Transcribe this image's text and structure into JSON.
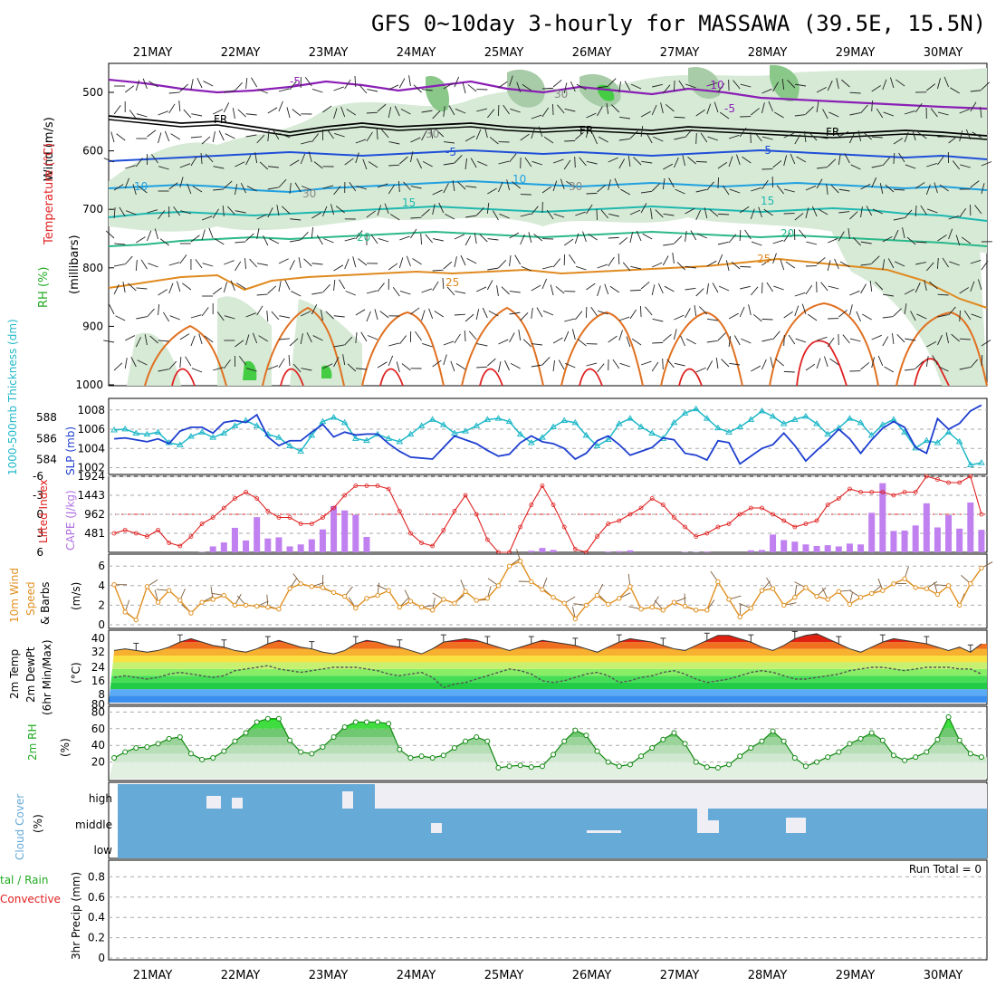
{
  "title": "GFS 0~10day 3-hourly for MASSAWA (39.5E, 15.5N)",
  "dates": [
    "21MAY",
    "22MAY",
    "23MAY",
    "24MAY",
    "25MAY",
    "26MAY",
    "27MAY",
    "28MAY",
    "29MAY",
    "30MAY"
  ],
  "colors": {
    "purple": "#8a1fb5",
    "black": "#000000",
    "blue": "#1f4fd8",
    "lightblue": "#1fa0e0",
    "teal": "#1fb8b0",
    "green_t": "#2ab88a",
    "orange": "#e08a1f",
    "darkorange": "#e07020",
    "red": "#e02020",
    "cape": "#c080f0",
    "rh_green": "#22cc22",
    "cloud": "#66aad8",
    "slp": "#1f3fd0",
    "thick": "#20b8c8",
    "wind10": "#e09020"
  },
  "panels": {
    "upper": {
      "ylabel_wind": "Wind (m/s)",
      "ylabel_temp": "Temperature (°C)",
      "ylabel_rh": "RH (%)",
      "ylabel_mb": "(millibars)",
      "ticks": [
        "500",
        "600",
        "700",
        "800",
        "900",
        "1000"
      ],
      "contour_labels": [
        {
          "text": "-5",
          "color": "purple"
        },
        {
          "text": "-10",
          "color": "purple"
        },
        {
          "text": "-5",
          "color": "purple"
        },
        {
          "text": "FR",
          "color": "black"
        },
        {
          "text": "FR",
          "color": "black"
        },
        {
          "text": "FR",
          "color": "black"
        },
        {
          "text": "-5",
          "color": "blue"
        },
        {
          "text": "-5",
          "color": "blue"
        },
        {
          "text": "10",
          "color": "lightblue"
        },
        {
          "text": "10",
          "color": "lightblue"
        },
        {
          "text": "15",
          "color": "teal"
        },
        {
          "text": "15",
          "color": "teal"
        },
        {
          "text": "20",
          "color": "green_t"
        },
        {
          "text": "20",
          "color": "green_t"
        },
        {
          "text": "25",
          "color": "orange"
        },
        {
          "text": "25",
          "color": "orange"
        },
        {
          "text": "30",
          "color": "gray"
        },
        {
          "text": "30",
          "color": "gray"
        },
        {
          "text": "30",
          "color": "gray"
        },
        {
          "text": "30",
          "color": "gray"
        }
      ]
    },
    "slp": {
      "ylabel_thick": "1000-500mb Thickness (dm)",
      "ylabel_slp": "SLP (mb)",
      "thick_ticks": [
        "588",
        "586",
        "584"
      ],
      "slp_ticks": [
        "1008",
        "1006",
        "1004",
        "1002"
      ]
    },
    "cape": {
      "ylabel_li": "Lifted Index",
      "ylabel_cape": "CAPE (J/kg)",
      "li_ticks": [
        "-6",
        "-3",
        "0",
        "3",
        "6"
      ],
      "cape_ticks": [
        "1924",
        "1443",
        "962",
        "481"
      ]
    },
    "wind": {
      "ylabel_1": "10m Wind",
      "ylabel_2": "Speed",
      "ylabel_3": "& Barbs",
      "ylabel_4": "(m/s)",
      "ticks": [
        "6",
        "4",
        "2",
        "0"
      ]
    },
    "temp": {
      "ylabel_1": "2m Temp",
      "ylabel_2": "2m DewPt",
      "ylabel_3": "(6hr Min/Max)",
      "ylabel_4": "(°C)",
      "ticks": [
        "40",
        "32",
        "24",
        "16",
        "8",
        "80"
      ]
    },
    "rh": {
      "ylabel_1": "2m RH",
      "ylabel_2": "(%)",
      "ticks": [
        "80",
        "60",
        "40",
        "20"
      ]
    },
    "cloud": {
      "ylabel_1": "Cloud Cover",
      "ylabel_2": "(%)",
      "levels": [
        "high",
        "middle",
        "low"
      ]
    },
    "precip": {
      "ylabel_1": "tal / Rain",
      "ylabel_2": "Convective",
      "ylabel_3": "3hr Precip (mm)",
      "ticks": [
        "0.8",
        "0.6",
        "0.4",
        "0.2",
        "0"
      ],
      "run_total": "Run Total = 0"
    }
  },
  "chart_data": {
    "type": "line",
    "x": [
      "20MAY12",
      "20MAY15",
      "20MAY18",
      "20MAY21",
      "21MAY00",
      "21MAY03",
      "21MAY06",
      "21MAY09",
      "21MAY12",
      "21MAY15",
      "21MAY18",
      "21MAY21",
      "22MAY00",
      "22MAY03",
      "22MAY06",
      "22MAY09",
      "22MAY12",
      "22MAY15",
      "22MAY18",
      "22MAY21",
      "23MAY00",
      "23MAY03",
      "23MAY06",
      "23MAY09",
      "23MAY12",
      "23MAY15",
      "23MAY18",
      "23MAY21",
      "24MAY00",
      "24MAY03",
      "24MAY06",
      "24MAY09",
      "24MAY12",
      "24MAY15",
      "24MAY18",
      "24MAY21",
      "25MAY00",
      "25MAY03",
      "25MAY06",
      "25MAY09",
      "25MAY12",
      "25MAY15",
      "25MAY18",
      "25MAY21",
      "26MAY00",
      "26MAY03",
      "26MAY06",
      "26MAY09",
      "26MAY12",
      "26MAY15",
      "26MAY18",
      "26MAY21",
      "27MAY00",
      "27MAY03",
      "27MAY06",
      "27MAY09",
      "27MAY12",
      "27MAY15",
      "27MAY18",
      "27MAY21",
      "28MAY00",
      "28MAY03",
      "28MAY06",
      "28MAY09",
      "28MAY12",
      "28MAY15",
      "28MAY18",
      "28MAY21",
      "29MAY00",
      "29MAY03",
      "29MAY06",
      "29MAY09",
      "29MAY12",
      "29MAY15",
      "29MAY18",
      "29MAY21",
      "30MAY00",
      "30MAY03",
      "30MAY06",
      "30MAY09"
    ],
    "series": [
      {
        "name": "2m RH",
        "panel": "rh",
        "values": [
          25,
          32,
          37,
          38,
          42,
          48,
          50,
          30,
          23,
          25,
          33,
          45,
          55,
          68,
          72,
          72,
          46,
          32,
          30,
          38,
          50,
          62,
          68,
          68,
          68,
          66,
          35,
          25,
          27,
          25,
          28,
          37,
          45,
          50,
          45,
          13,
          15,
          16,
          14,
          15,
          29,
          45,
          58,
          52,
          33,
          20,
          15,
          17,
          27,
          37,
          47,
          55,
          42,
          20,
          14,
          13,
          17,
          27,
          37,
          45,
          57,
          45,
          25,
          15,
          20,
          26,
          32,
          42,
          48,
          55,
          46,
          28,
          22,
          26,
          32,
          47,
          74,
          46,
          30,
          26
        ]
      },
      {
        "name": "2m Temp",
        "panel": "temp",
        "values": [
          31,
          32,
          31,
          30,
          31,
          33,
          36,
          38,
          36,
          34,
          33,
          31,
          30,
          32,
          35,
          37,
          35,
          33,
          32,
          30,
          29,
          31,
          35,
          37,
          36,
          34,
          33,
          31,
          29,
          32,
          36,
          37,
          38,
          37,
          35,
          33,
          31,
          33,
          35,
          37,
          36,
          35,
          34,
          32,
          30,
          33,
          36,
          38,
          37,
          36,
          34,
          32,
          31,
          34,
          37,
          40,
          40,
          38,
          36,
          33,
          31,
          34,
          38,
          40,
          41,
          38,
          35,
          32,
          30,
          33,
          36,
          38,
          37,
          36,
          35,
          33,
          31,
          33,
          30,
          35
        ]
      },
      {
        "name": "2m DewPt",
        "panel": "temp",
        "values": [
          15,
          16,
          15,
          14,
          15,
          17,
          18,
          17,
          16,
          15,
          16,
          19,
          20,
          21,
          22,
          20,
          19,
          18,
          19,
          20,
          21,
          21,
          21,
          20,
          19,
          17,
          16,
          17,
          18,
          15,
          9,
          11,
          12,
          14,
          16,
          18,
          20,
          19,
          17,
          13,
          12,
          13,
          15,
          17,
          18,
          16,
          12,
          13,
          15,
          16,
          18,
          19,
          17,
          14,
          12,
          13,
          14,
          16,
          18,
          19,
          18,
          16,
          14,
          14,
          15,
          16,
          17,
          19,
          20,
          21,
          21,
          20,
          19,
          20,
          21,
          21,
          21,
          20,
          20,
          17
        ]
      },
      {
        "name": "10m Wind Speed",
        "panel": "wind",
        "values": [
          4.1,
          1.3,
          0.5,
          3.9,
          2.3,
          3.5,
          2.5,
          1.2,
          2.3,
          2.6,
          3.0,
          2.0,
          2.0,
          1.9,
          1.8,
          1.6,
          3.7,
          4.2,
          3.9,
          3.8,
          3.3,
          2.9,
          1.7,
          2.7,
          3.0,
          3.5,
          1.8,
          2.4,
          1.8,
          1.5,
          2.6,
          2.2,
          3.4,
          2.5,
          2.7,
          4.0,
          6.0,
          6.5,
          4.4,
          3.6,
          2.8,
          2.2,
          0.6,
          2.0,
          3.0,
          2.1,
          2.7,
          3.9,
          1.6,
          1.8,
          1.5,
          2.3,
          1.9,
          1.5,
          1.5,
          4.4,
          2.6,
          0.8,
          1.7,
          3.5,
          3.7,
          2.0,
          2.8,
          3.8,
          2.9,
          2.6,
          3.4,
          2.1,
          2.8,
          3.2,
          3.5,
          4.2,
          4.7,
          3.8,
          3.7,
          3.1,
          4.0,
          2.0,
          4.2,
          5.8
        ]
      },
      {
        "name": "1000-500mb Thickness",
        "panel": "slp",
        "values": [
          586.8,
          586.9,
          586.5,
          586.4,
          586.6,
          585.6,
          585.4,
          586.2,
          586.6,
          586.1,
          586.5,
          587.2,
          587.7,
          587.2,
          586.4,
          586.1,
          585.3,
          584.8,
          586.3,
          587.6,
          588.0,
          587.5,
          586.0,
          585.8,
          586.4,
          586.0,
          585.7,
          586.4,
          587.2,
          587.8,
          587.3,
          586.5,
          586.7,
          587.2,
          587.8,
          587.9,
          587.6,
          586.4,
          585.6,
          586.1,
          587.1,
          587.7,
          587.5,
          586.3,
          585.3,
          585.9,
          587.4,
          587.9,
          587.1,
          586.5,
          586.0,
          587.5,
          588.4,
          588.8,
          587.9,
          587.0,
          586.6,
          587.1,
          587.8,
          588.6,
          588.1,
          587.4,
          587.8,
          588.1,
          587.4,
          586.4,
          587.0,
          587.9,
          587.5,
          586.3,
          587.3,
          587.8,
          586.6,
          585.1,
          585.8,
          585.6,
          586.6,
          585.7,
          583.5,
          583.7
        ]
      },
      {
        "name": "SLP",
        "panel": "slp",
        "values": [
          1005.0,
          1005.1,
          1004.9,
          1004.7,
          1005.0,
          1004.5,
          1005.8,
          1006.2,
          1006.2,
          1005.6,
          1006.7,
          1006.9,
          1006.7,
          1007.5,
          1005.2,
          1004.3,
          1004.8,
          1004.8,
          1005.7,
          1006.5,
          1005.2,
          1005.7,
          1005.4,
          1005.5,
          1005.5,
          1004.5,
          1003.7,
          1003.1,
          1003.0,
          1002.9,
          1004.1,
          1005.3,
          1004.9,
          1004.5,
          1003.8,
          1003.2,
          1003.4,
          1004.6,
          1005.3,
          1004.7,
          1004.5,
          1004.0,
          1002.9,
          1003.5,
          1004.8,
          1005.3,
          1004.4,
          1003.3,
          1003.7,
          1004.1,
          1005.1,
          1004.9,
          1003.5,
          1003.3,
          1002.8,
          1004.8,
          1004.6,
          1002.4,
          1003.2,
          1004.0,
          1004.4,
          1005.6,
          1004.3,
          1002.7,
          1003.8,
          1004.8,
          1006.0,
          1005.0,
          1003.5,
          1004.9,
          1006.1,
          1006.8,
          1006.2,
          1004.1,
          1003.5,
          1007.1,
          1006.0,
          1006.6,
          1007.9,
          1008.5
        ]
      },
      {
        "name": "Lifted Index",
        "panel": "cape",
        "values": [
          3.0,
          2.5,
          3.0,
          3.5,
          2.5,
          4.5,
          5.0,
          3.5,
          1.5,
          0.5,
          -1.0,
          -2.5,
          -3.5,
          -2.5,
          -0.5,
          0.5,
          0.5,
          1.5,
          1.5,
          0.5,
          -1.0,
          -3.0,
          -4.5,
          -4.5,
          -4.5,
          -4.0,
          -0.5,
          3.0,
          4.5,
          5.0,
          2.5,
          -0.5,
          -3.0,
          0.0,
          4.0,
          6.0,
          6.5,
          2.0,
          -1.5,
          -4.5,
          -1.5,
          2.0,
          5.5,
          6.0,
          3.5,
          1.5,
          1.0,
          0.0,
          -1.0,
          -2.5,
          -1.5,
          0.5,
          2.0,
          3.5,
          3.0,
          2.0,
          1.5,
          0.0,
          -1.0,
          -1.0,
          0.0,
          1.0,
          2.0,
          1.5,
          1.0,
          -1.5,
          -2.5,
          -4.0,
          -3.5,
          -3.5,
          -3.5,
          -3.0,
          -3.5,
          -3.5,
          -6.5,
          -5.5,
          -5.0,
          -5.0,
          -7.0,
          0.0
        ]
      },
      {
        "name": "CAPE",
        "panel": "cape",
        "values": [
          0,
          0,
          0,
          0,
          0,
          0,
          0,
          0,
          10,
          150,
          250,
          620,
          300,
          890,
          350,
          380,
          150,
          200,
          330,
          580,
          1170,
          1060,
          950,
          390,
          0,
          0,
          0,
          0,
          0,
          0,
          0,
          0,
          0,
          0,
          0,
          0,
          0,
          0,
          40,
          110,
          60,
          0,
          0,
          0,
          0,
          20,
          30,
          50,
          0,
          0,
          0,
          0,
          10,
          10,
          20,
          0,
          0,
          0,
          50,
          60,
          450,
          310,
          270,
          200,
          160,
          180,
          150,
          220,
          200,
          1000,
          1750,
          540,
          550,
          680,
          1240,
          630,
          940,
          600,
          1260,
          570
        ]
      }
    ]
  }
}
